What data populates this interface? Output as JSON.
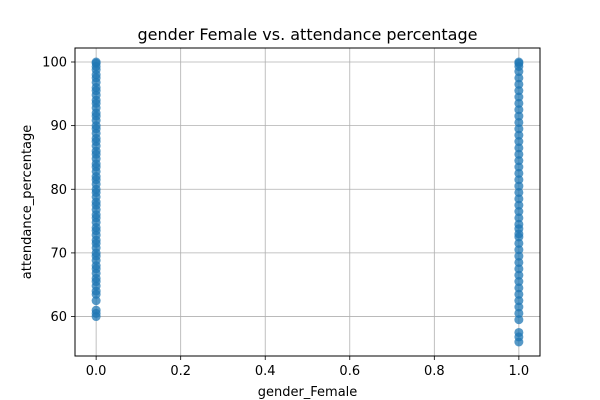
{
  "chart_data": {
    "type": "scatter",
    "title": "gender Female vs. attendance percentage",
    "xlabel": "gender_Female",
    "ylabel": "attendance_percentage",
    "xlim": [
      -0.05,
      1.05
    ],
    "ylim": [
      53.8,
      102.2
    ],
    "x_ticks": [
      0.0,
      0.2,
      0.4,
      0.6,
      0.8,
      1.0
    ],
    "x_tick_labels": [
      "0.0",
      "0.2",
      "0.4",
      "0.6",
      "0.8",
      "1.0"
    ],
    "y_ticks": [
      60,
      70,
      80,
      90,
      100
    ],
    "y_tick_labels": [
      "60",
      "70",
      "80",
      "90",
      "100"
    ],
    "grid": true,
    "legend": "none",
    "marker_color": "#1f77b4",
    "series": [
      {
        "points": [
          [
            0,
            60.0
          ],
          [
            0,
            60.5
          ],
          [
            0,
            61.0
          ],
          [
            0,
            62.5
          ],
          [
            0,
            63.5
          ],
          [
            0,
            64.0
          ],
          [
            0,
            64.8
          ],
          [
            0,
            65.5
          ],
          [
            0,
            66.0
          ],
          [
            0,
            66.8
          ],
          [
            0,
            67.5
          ],
          [
            0,
            68.0
          ],
          [
            0,
            68.8
          ],
          [
            0,
            69.5
          ],
          [
            0,
            70.0
          ],
          [
            0,
            70.8
          ],
          [
            0,
            71.5
          ],
          [
            0,
            72.0
          ],
          [
            0,
            72.8
          ],
          [
            0,
            73.5
          ],
          [
            0,
            74.0
          ],
          [
            0,
            74.8
          ],
          [
            0,
            75.5
          ],
          [
            0,
            76.0
          ],
          [
            0,
            76.8
          ],
          [
            0,
            77.5
          ],
          [
            0,
            78.0
          ],
          [
            0,
            78.8
          ],
          [
            0,
            79.5
          ],
          [
            0,
            80.0
          ],
          [
            0,
            80.8
          ],
          [
            0,
            81.5
          ],
          [
            0,
            82.0
          ],
          [
            0,
            82.8
          ],
          [
            0,
            83.5
          ],
          [
            0,
            84.0
          ],
          [
            0,
            84.8
          ],
          [
            0,
            85.5
          ],
          [
            0,
            86.0
          ],
          [
            0,
            86.8
          ],
          [
            0,
            87.5
          ],
          [
            0,
            88.0
          ],
          [
            0,
            88.8
          ],
          [
            0,
            89.5
          ],
          [
            0,
            90.0
          ],
          [
            0,
            90.8
          ],
          [
            0,
            91.5
          ],
          [
            0,
            92.0
          ],
          [
            0,
            92.8
          ],
          [
            0,
            93.5
          ],
          [
            0,
            94.0
          ],
          [
            0,
            94.8
          ],
          [
            0,
            95.5
          ],
          [
            0,
            96.0
          ],
          [
            0,
            96.8
          ],
          [
            0,
            97.5
          ],
          [
            0,
            98.0
          ],
          [
            0,
            98.8
          ],
          [
            0,
            99.3
          ],
          [
            0,
            99.8
          ],
          [
            0,
            100.0
          ],
          [
            1,
            56.0
          ],
          [
            1,
            56.8
          ],
          [
            1,
            57.5
          ],
          [
            1,
            59.5
          ],
          [
            1,
            60.5
          ],
          [
            1,
            61.5
          ],
          [
            1,
            62.5
          ],
          [
            1,
            63.5
          ],
          [
            1,
            64.5
          ],
          [
            1,
            65.5
          ],
          [
            1,
            66.5
          ],
          [
            1,
            67.5
          ],
          [
            1,
            68.5
          ],
          [
            1,
            69.5
          ],
          [
            1,
            70.5
          ],
          [
            1,
            71.5
          ],
          [
            1,
            72.5
          ],
          [
            1,
            73.0
          ],
          [
            1,
            73.8
          ],
          [
            1,
            74.5
          ],
          [
            1,
            75.5
          ],
          [
            1,
            76.5
          ],
          [
            1,
            77.5
          ],
          [
            1,
            78.5
          ],
          [
            1,
            79.5
          ],
          [
            1,
            80.5
          ],
          [
            1,
            81.5
          ],
          [
            1,
            82.5
          ],
          [
            1,
            83.5
          ],
          [
            1,
            84.5
          ],
          [
            1,
            85.5
          ],
          [
            1,
            86.5
          ],
          [
            1,
            87.5
          ],
          [
            1,
            88.5
          ],
          [
            1,
            89.5
          ],
          [
            1,
            90.5
          ],
          [
            1,
            91.5
          ],
          [
            1,
            92.5
          ],
          [
            1,
            93.5
          ],
          [
            1,
            94.5
          ],
          [
            1,
            95.5
          ],
          [
            1,
            96.5
          ],
          [
            1,
            97.5
          ],
          [
            1,
            98.5
          ],
          [
            1,
            99.3
          ],
          [
            1,
            99.8
          ],
          [
            1,
            100.0
          ]
        ]
      }
    ]
  }
}
